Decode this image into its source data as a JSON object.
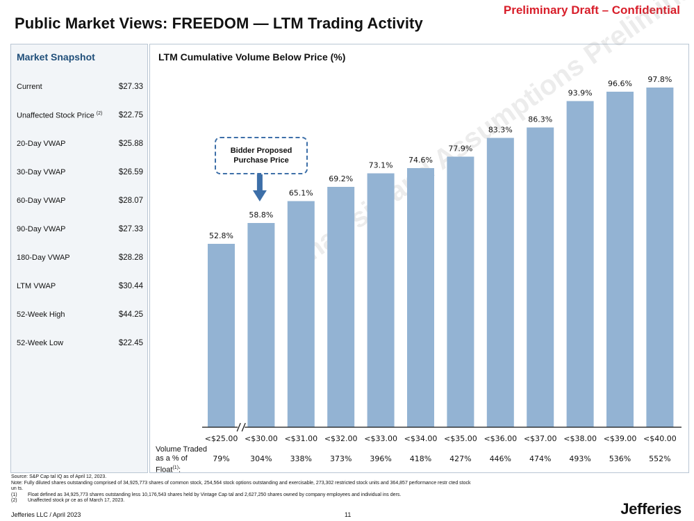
{
  "header": {
    "draft_label": "Preliminary Draft – Confidential",
    "title": "Public Market Views: FREEDOM — LTM Trading Activity"
  },
  "snapshot": {
    "title": "Market Snapshot",
    "rows": [
      {
        "label": "Current",
        "value": "$27.33"
      },
      {
        "label": "Unaffected Stock Price",
        "sup": "(2)",
        "value": "$22.75"
      },
      {
        "label": "20-Day VWAP",
        "value": "$25.88"
      },
      {
        "label": "30-Day VWAP",
        "value": "$26.59"
      },
      {
        "label": "60-Day VWAP",
        "value": "$28.07"
      },
      {
        "label": "90-Day VWAP",
        "value": "$27.33"
      },
      {
        "label": "180-Day VWAP",
        "value": "$28.28"
      },
      {
        "label": "LTM VWAP",
        "value": "$30.44"
      },
      {
        "label": "52-Week High",
        "value": "$44.25"
      },
      {
        "label": "52-Week Low",
        "value": "$22.45"
      }
    ]
  },
  "chart_data": {
    "type": "bar",
    "title": "LTM Cumulative Volume Below Price (%)",
    "categories": [
      "<$25.00",
      "<$30.00",
      "<$31.00",
      "<$32.00",
      "<$33.00",
      "<$34.00",
      "<$35.00",
      "<$36.00",
      "<$37.00",
      "<$38.00",
      "<$39.00",
      "<$40.00"
    ],
    "values": [
      52.8,
      58.8,
      65.1,
      69.2,
      73.1,
      74.6,
      77.9,
      83.3,
      86.3,
      93.9,
      96.6,
      97.8
    ],
    "data_labels": [
      "52.8%",
      "58.8%",
      "65.1%",
      "69.2%",
      "73.1%",
      "74.6%",
      "77.9%",
      "83.3%",
      "86.3%",
      "93.9%",
      "96.6%",
      "97.8%"
    ],
    "ylim": [
      0,
      100
    ],
    "axis_break_between": [
      "<$25.00",
      "<$30.00"
    ],
    "bar_color": "#93b3d3",
    "annotation": {
      "text_line1": "Bidder Proposed",
      "text_line2": "Purchase Price",
      "points_to": "<$30.00",
      "arrow_color": "#3d6fa8"
    },
    "volume_traded": {
      "label_line1": "Volume Traded",
      "label_line2": "as a % of",
      "label_line3": "Float",
      "label_sup": "(1)",
      "label_suffix": ":",
      "values": [
        "79%",
        "304%",
        "338%",
        "373%",
        "396%",
        "418%",
        "427%",
        "446%",
        "474%",
        "493%",
        "536%",
        "552%"
      ]
    }
  },
  "watermark": "Analysis and Assumptions Preliminary Draft Subject to Revision Further Change",
  "notes": {
    "source": "Source: S&P Cap tal IQ as of April 12, 2023.",
    "note": "Note: Fully diluted shares outstanding comprised of 34,925,773 shares of common stock, 254,564 stock options outstanding and exercisable, 273,302 restricted stock units and 364,857 performance restr cted stock",
    "note_cont": "un ts.",
    "fn1_num": "(1)",
    "fn1": "Float defined as 34,925,773 shares outstanding less 10,176,543 shares held by Vintage Cap tal and 2,627,250 shares owned by company employees and individual ins ders.",
    "fn2_num": "(2)",
    "fn2": "Unaffected stock pr ce as of March 17, 2023."
  },
  "footer": {
    "left": "Jefferies LLC  /  April 2023",
    "page_number": "11",
    "logo": "Jefferies"
  }
}
